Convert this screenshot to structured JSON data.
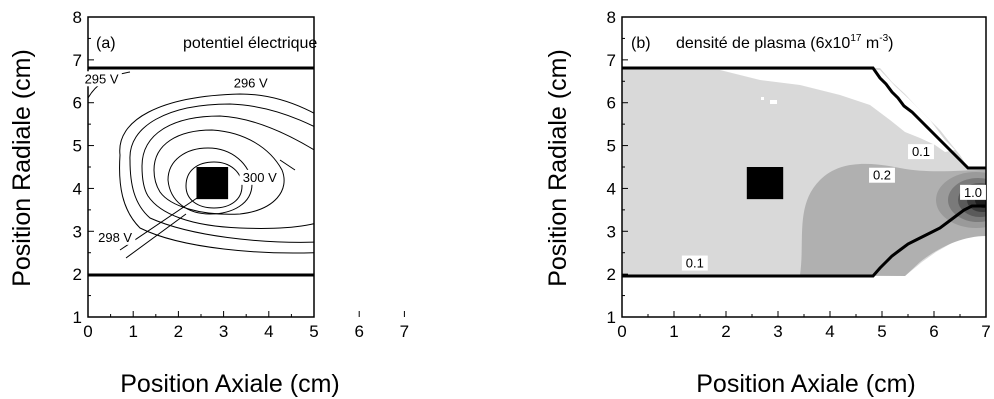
{
  "chart_data": [
    {
      "type": "contour",
      "panel_label": "(a)",
      "title": "potentiel électrique",
      "xlabel": "Position Axiale (cm)",
      "ylabel": "Position Radiale (cm)",
      "xlim": [
        0,
        7
      ],
      "ylim": [
        1,
        8
      ],
      "xticks": [
        "0",
        "1",
        "2",
        "3",
        "4",
        "5",
        "6",
        "7"
      ],
      "yticks": [
        "1",
        "2",
        "3",
        "4",
        "5",
        "6",
        "7",
        "8"
      ],
      "contour_labels": [
        {
          "text": "295 V",
          "x": 0.3,
          "y": 6.5
        },
        {
          "text": "296 V",
          "x": 3.6,
          "y": 6.4
        },
        {
          "text": "300 V",
          "x": 3.8,
          "y": 4.2
        },
        {
          "text": "298 V",
          "x": 0.6,
          "y": 2.8
        }
      ],
      "electrode": {
        "x": [
          2.4,
          3.1
        ],
        "y": [
          3.75,
          4.5
        ]
      }
    },
    {
      "type": "contour",
      "panel_label": "(b)",
      "title_main": "densité de plasma (6x10",
      "title_sup1": "17",
      "title_mid": " m",
      "title_sup2": "-3",
      "title_end": ")",
      "xlabel": "Position Axiale (cm)",
      "ylabel": "Position Radiale (cm)",
      "xlim": [
        0,
        7
      ],
      "ylim": [
        1,
        8
      ],
      "xticks": [
        "0",
        "1",
        "2",
        "3",
        "4",
        "5",
        "6",
        "7"
      ],
      "yticks": [
        "1",
        "2",
        "3",
        "4",
        "5",
        "6",
        "7",
        "8"
      ],
      "contour_labels": [
        {
          "text": "0.1",
          "x": 5.75,
          "y": 4.8
        },
        {
          "text": "0.2",
          "x": 5.0,
          "y": 4.25
        },
        {
          "text": "1.0",
          "x": 6.75,
          "y": 3.85
        },
        {
          "text": "0.1",
          "x": 1.4,
          "y": 2.2
        }
      ],
      "electrode": {
        "x": [
          2.4,
          3.1
        ],
        "y": [
          3.75,
          4.5
        ]
      }
    }
  ]
}
